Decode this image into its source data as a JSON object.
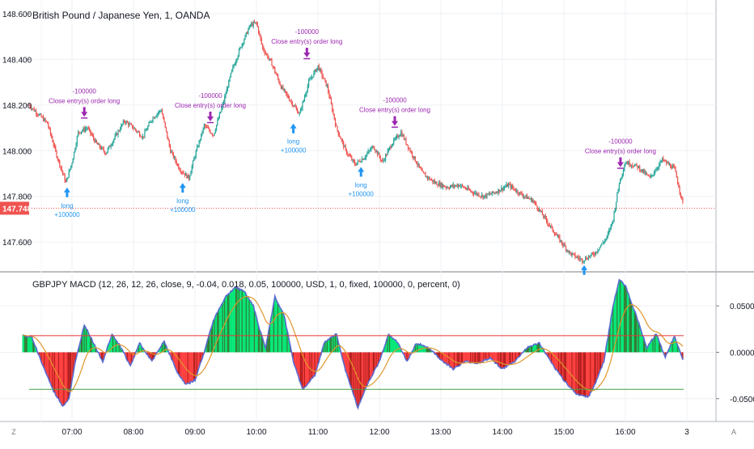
{
  "header": {
    "symbol_title": "British Pound / Japanese Yen, 1, OANDA"
  },
  "macd_panel": {
    "title": "GBPJPY MACD (12, 26, 12, 26, close, 9, -0.04, 0.018, 0.05, 100000, USD, 1, 0, fixed, 100000, 0, percent, 0)"
  },
  "colors": {
    "bull_candle": "#26a69a",
    "bear_candle": "#ef5350",
    "hist_pos_bright": "#00e676",
    "hist_pos_dark": "#2e7d32",
    "hist_neg_bright": "#ff3d3d",
    "hist_neg_dark": "#b71c1c",
    "macd_line": "#5b6bd1",
    "signal_line": "#e0962b",
    "upper_threshold": "#e53935",
    "lower_threshold": "#43a047",
    "long_marker": "#2196f3",
    "close_marker": "#9c27b0",
    "price_line": "#ef5350"
  },
  "chart_data": [
    {
      "type": "candlestick",
      "name": "GBPJPY 1-minute price",
      "x_ticks": [
        "07:00",
        "08:00",
        "09:00",
        "10:00",
        "11:00",
        "12:00",
        "13:00",
        "14:00",
        "15:00",
        "16:00",
        "3"
      ],
      "y_ticks": [
        "148.600",
        "148.400",
        "148.200",
        "148.000",
        "147.800",
        "147.600"
      ],
      "ylim": [
        147.48,
        148.66
      ],
      "current_price": "147.748",
      "close_path_x_hours": [
        6.3,
        6.45,
        6.6,
        6.75,
        6.9,
        7.0,
        7.1,
        7.25,
        7.4,
        7.55,
        7.7,
        7.85,
        8.0,
        8.15,
        8.3,
        8.45,
        8.6,
        8.75,
        8.9,
        9.0,
        9.15,
        9.3,
        9.45,
        9.6,
        9.75,
        9.9,
        10.0,
        10.1,
        10.25,
        10.4,
        10.55,
        10.7,
        10.85,
        11.0,
        11.15,
        11.3,
        11.45,
        11.6,
        11.75,
        11.9,
        12.05,
        12.2,
        12.35,
        12.5,
        12.7,
        12.9,
        13.1,
        13.3,
        13.5,
        13.7,
        13.9,
        14.1,
        14.3,
        14.5,
        14.7,
        14.9,
        15.1,
        15.3,
        15.5,
        15.7,
        15.8,
        15.9,
        16.0,
        16.2,
        16.4,
        16.6,
        16.8,
        16.95
      ],
      "close_path_y": [
        148.2,
        148.16,
        148.12,
        147.98,
        147.86,
        147.95,
        148.08,
        148.1,
        148.03,
        147.99,
        148.06,
        148.13,
        148.1,
        148.06,
        148.14,
        148.18,
        148.0,
        147.92,
        147.88,
        147.98,
        148.11,
        148.07,
        148.2,
        148.35,
        148.46,
        148.55,
        148.56,
        148.45,
        148.38,
        148.28,
        148.22,
        148.16,
        148.3,
        148.37,
        148.28,
        148.1,
        148.0,
        147.94,
        147.97,
        148.02,
        147.95,
        148.03,
        148.08,
        148.0,
        147.9,
        147.86,
        147.84,
        147.85,
        147.82,
        147.8,
        147.82,
        147.85,
        147.81,
        147.78,
        147.7,
        147.62,
        147.55,
        147.52,
        147.55,
        147.62,
        147.7,
        147.86,
        147.95,
        147.93,
        147.88,
        147.96,
        147.92,
        147.75
      ],
      "markers": [
        {
          "kind": "long",
          "text_1": "long",
          "text_2": "+100000",
          "x_hour": 6.92,
          "price": 147.86,
          "label_side": "below"
        },
        {
          "kind": "close",
          "text_1": "-100000",
          "text_2": "Close entry(s) order long",
          "x_hour": 7.2,
          "price": 148.12,
          "label_side": "above"
        },
        {
          "kind": "long",
          "text_1": "long",
          "text_2": "+100000",
          "x_hour": 8.8,
          "price": 147.88,
          "label_side": "below"
        },
        {
          "kind": "close",
          "text_1": "-100000",
          "text_2": "Close entry(s) order long",
          "x_hour": 9.25,
          "price": 148.1,
          "label_side": "above"
        },
        {
          "kind": "long",
          "text_1": "long",
          "text_2": "+100000",
          "x_hour": 10.6,
          "price": 148.14,
          "label_side": "below"
        },
        {
          "kind": "close",
          "text_1": "-100000",
          "text_2": "Close entry(s) order long",
          "x_hour": 10.82,
          "price": 148.38,
          "label_side": "above"
        },
        {
          "kind": "long",
          "text_1": "long",
          "text_2": "+100000",
          "x_hour": 11.7,
          "price": 147.95,
          "label_side": "below"
        },
        {
          "kind": "close",
          "text_1": "-100000",
          "text_2": "Close entry(s) order long",
          "x_hour": 12.25,
          "price": 148.08,
          "label_side": "above"
        },
        {
          "kind": "long",
          "text_1": "",
          "text_2": "",
          "x_hour": 15.33,
          "price": 147.52,
          "label_side": "below"
        },
        {
          "kind": "close",
          "text_1": "-100000",
          "text_2": "Close entry(s) order long",
          "x_hour": 15.92,
          "price": 147.9,
          "label_side": "above"
        }
      ]
    },
    {
      "type": "histogram",
      "name": "GBPJPY MACD",
      "y_ticks": [
        "0.0500",
        "0.0000",
        "-0.0500"
      ],
      "ylim": [
        -0.072,
        0.085
      ],
      "upper_threshold": 0.018,
      "lower_threshold": -0.04,
      "hist_path_x_hours": [
        6.2,
        6.35,
        6.5,
        6.7,
        6.85,
        6.95,
        7.05,
        7.2,
        7.35,
        7.5,
        7.65,
        7.8,
        7.95,
        8.1,
        8.3,
        8.5,
        8.7,
        8.85,
        9.0,
        9.15,
        9.3,
        9.5,
        9.65,
        9.8,
        9.95,
        10.05,
        10.15,
        10.3,
        10.45,
        10.6,
        10.75,
        10.95,
        11.1,
        11.3,
        11.45,
        11.65,
        11.8,
        12.0,
        12.15,
        12.3,
        12.45,
        12.6,
        12.8,
        13.0,
        13.2,
        13.4,
        13.6,
        13.8,
        14.0,
        14.2,
        14.4,
        14.6,
        14.8,
        15.0,
        15.2,
        15.4,
        15.5,
        15.65,
        15.8,
        15.9,
        16.0,
        16.2,
        16.35,
        16.5,
        16.65,
        16.8,
        16.95
      ],
      "hist_path_y": [
        0.018,
        0.016,
        -0.01,
        -0.042,
        -0.058,
        -0.05,
        -0.012,
        0.03,
        0.01,
        -0.01,
        0.02,
        0.005,
        -0.015,
        0.01,
        -0.01,
        0.012,
        -0.02,
        -0.035,
        -0.03,
        0.0,
        0.035,
        0.06,
        0.07,
        0.066,
        0.05,
        0.025,
        0.005,
        0.06,
        0.04,
        -0.01,
        -0.04,
        -0.025,
        0.01,
        0.02,
        -0.02,
        -0.06,
        -0.035,
        -0.01,
        0.02,
        0.01,
        -0.01,
        0.01,
        0.005,
        -0.008,
        -0.018,
        -0.01,
        -0.012,
        -0.006,
        -0.018,
        -0.01,
        0.005,
        0.01,
        -0.012,
        -0.03,
        -0.045,
        -0.048,
        -0.035,
        -0.01,
        0.05,
        0.078,
        0.072,
        0.035,
        0.005,
        0.02,
        -0.005,
        0.018,
        -0.012
      ]
    }
  ],
  "time_axis_corner": "Z",
  "price_axis_corner": "A"
}
